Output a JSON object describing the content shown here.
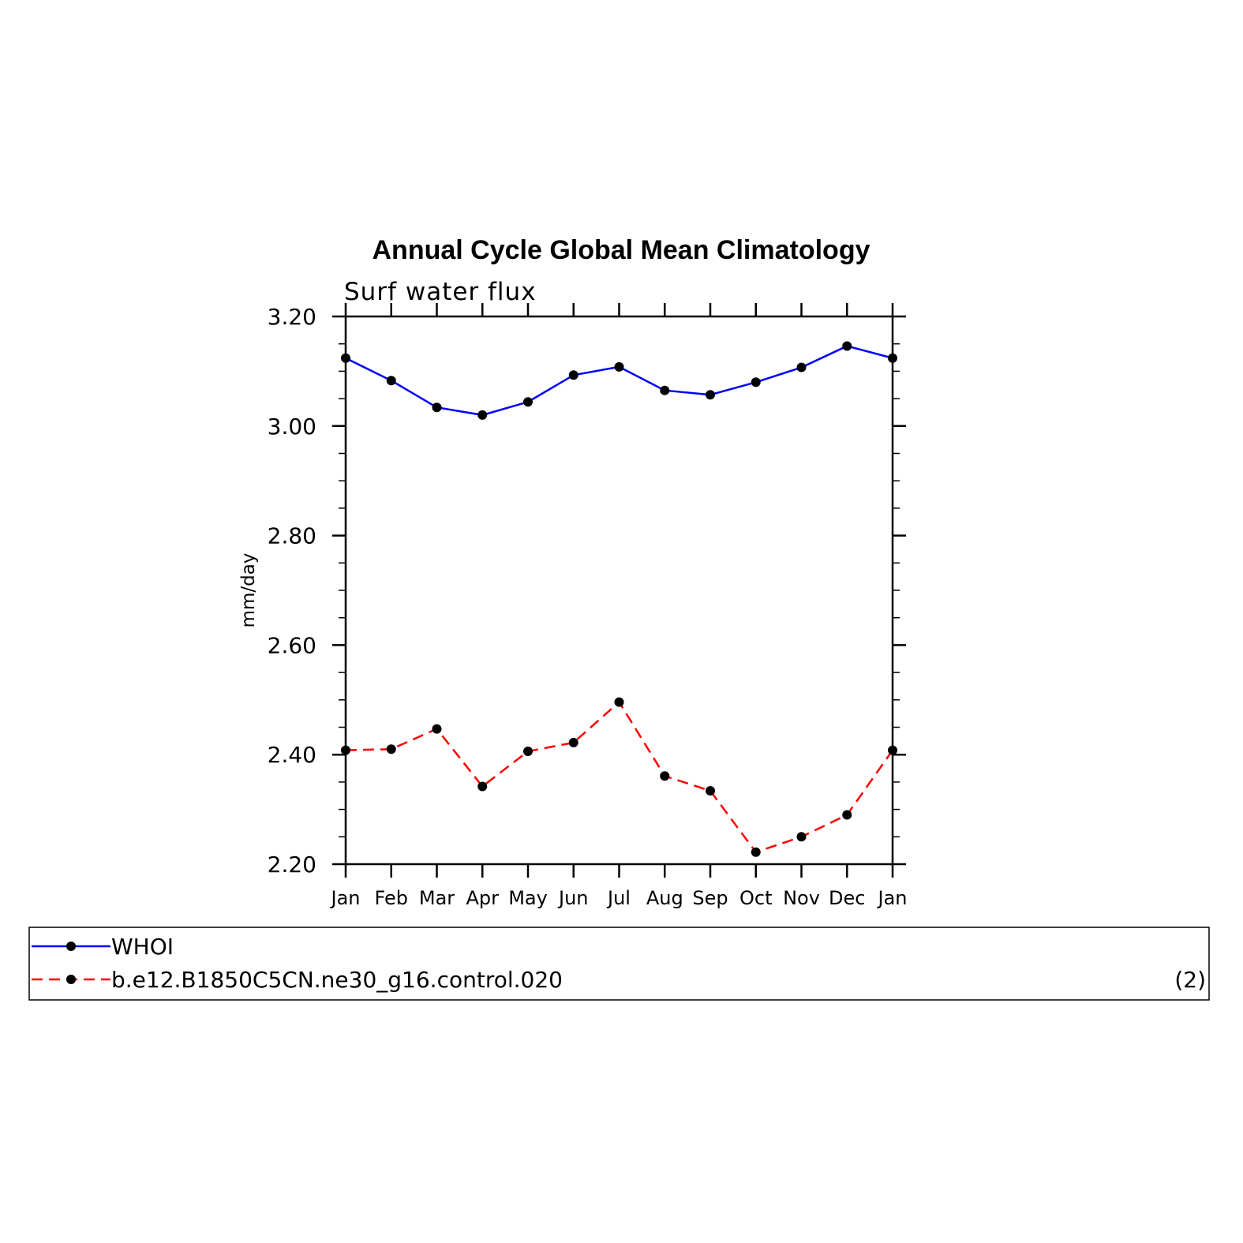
{
  "chart_data": {
    "type": "line",
    "title": "Annual Cycle Global Mean Climatology",
    "subtitle": "Surf water flux",
    "xlabel": "",
    "ylabel": "mm/day",
    "categories": [
      "Jan",
      "Feb",
      "Mar",
      "Apr",
      "May",
      "Jun",
      "Jul",
      "Aug",
      "Sep",
      "Oct",
      "Nov",
      "Dec",
      "Jan"
    ],
    "ylim": [
      2.2,
      3.2
    ],
    "yticks": [
      "3.20",
      "3.00",
      "2.80",
      "2.60",
      "2.40",
      "2.20"
    ],
    "ytick_values": [
      3.2,
      3.0,
      2.8,
      2.6,
      2.4,
      2.2
    ],
    "grid": false,
    "legend_position": "bottom",
    "series": [
      {
        "name": "WHOI",
        "color": "#0000ff",
        "line_style": "solid",
        "values": [
          3.124,
          3.083,
          3.034,
          3.02,
          3.044,
          3.093,
          3.108,
          3.065,
          3.057,
          3.08,
          3.107,
          3.146,
          3.124
        ]
      },
      {
        "name": "b.e12.B1850C5CN.ne30_g16.control.020",
        "color": "#ff0000",
        "line_style": "dashed",
        "values": [
          2.408,
          2.41,
          2.447,
          2.342,
          2.406,
          2.422,
          2.496,
          2.361,
          2.334,
          2.222,
          2.25,
          2.29,
          2.408
        ]
      }
    ],
    "legend_note": "(2)"
  }
}
